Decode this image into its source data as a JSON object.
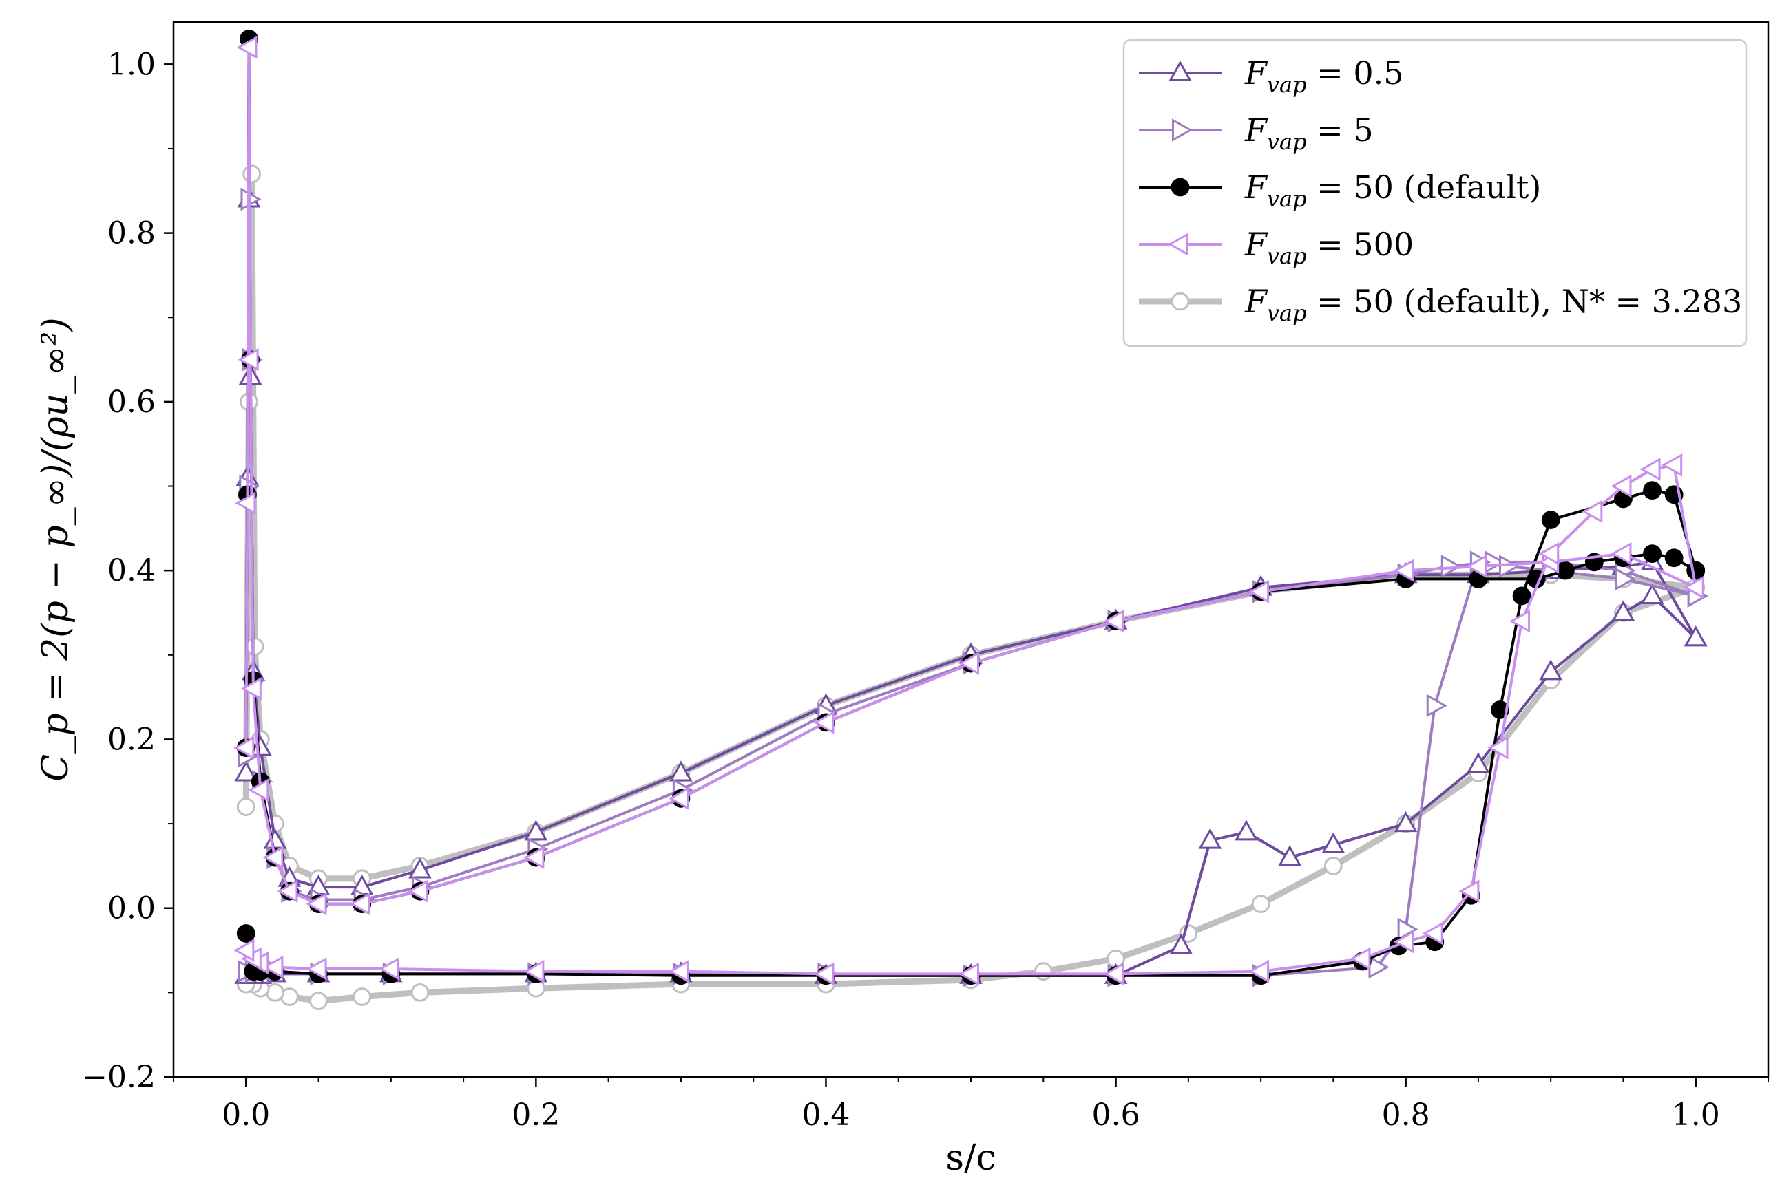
{
  "chart_data": {
    "type": "line",
    "xlabel": "s/c",
    "ylabel": "C_p = 2(p − p_∞)/(ρu_∞²)",
    "xlim": [
      -0.05,
      1.05
    ],
    "ylim": [
      -0.2,
      1.05
    ],
    "xticks": [
      0.0,
      0.2,
      0.4,
      0.6,
      0.8,
      1.0
    ],
    "xtick_labels": [
      "0.0",
      "0.2",
      "0.4",
      "0.6",
      "0.8",
      "1.0"
    ],
    "yticks": [
      -0.2,
      0.0,
      0.2,
      0.4,
      0.6,
      0.8,
      1.0
    ],
    "ytick_labels": [
      "−0.2",
      "0.0",
      "0.2",
      "0.4",
      "0.6",
      "0.8",
      "1.0"
    ],
    "grid": false,
    "legend_position": "top-right",
    "series": [
      {
        "name": "F_vap = 50 (default), N* = 3.283",
        "legend_main": "F",
        "legend_sub": "vap",
        "legend_rest": " = 50 (default), N* = 3.283",
        "color": "#bfbfbf",
        "marker": "circle",
        "filled": false,
        "line_width": 9,
        "x": [
          0.0,
          0.002,
          0.004,
          0.006,
          0.01,
          0.02,
          0.03,
          0.05,
          0.08,
          0.12,
          0.2,
          0.3,
          0.4,
          0.5,
          0.6,
          0.7,
          0.8,
          0.85,
          0.9,
          0.95,
          1.0,
          1.0,
          0.95,
          0.9,
          0.85,
          0.8,
          0.75,
          0.7,
          0.65,
          0.6,
          0.55,
          0.5,
          0.4,
          0.3,
          0.2,
          0.12,
          0.08,
          0.05,
          0.03,
          0.02,
          0.01,
          0.005,
          0.0
        ],
        "y": [
          0.12,
          0.6,
          0.87,
          0.31,
          0.2,
          0.1,
          0.05,
          0.035,
          0.035,
          0.05,
          0.09,
          0.16,
          0.24,
          0.3,
          0.34,
          0.375,
          0.395,
          0.395,
          0.395,
          0.39,
          0.38,
          0.38,
          0.35,
          0.27,
          0.16,
          0.1,
          0.05,
          0.005,
          -0.03,
          -0.06,
          -0.075,
          -0.085,
          -0.09,
          -0.09,
          -0.095,
          -0.1,
          -0.105,
          -0.11,
          -0.105,
          -0.1,
          -0.095,
          -0.09,
          -0.09
        ]
      },
      {
        "name": "F_vap = 0.5",
        "legend_main": "F",
        "legend_sub": "vap",
        "legend_rest": " = 0.5",
        "color": "#6f4ba0",
        "marker": "triangle-up",
        "filled": false,
        "line_width": 4,
        "x": [
          0.0,
          0.001,
          0.002,
          0.003,
          0.005,
          0.01,
          0.02,
          0.03,
          0.05,
          0.08,
          0.12,
          0.2,
          0.3,
          0.4,
          0.5,
          0.6,
          0.7,
          0.8,
          0.85,
          0.9,
          0.95,
          0.97,
          1.0,
          1.0,
          0.97,
          0.95,
          0.9,
          0.85,
          0.8,
          0.75,
          0.72,
          0.69,
          0.665,
          0.645,
          0.6,
          0.5,
          0.4,
          0.3,
          0.2,
          0.1,
          0.05,
          0.02,
          0.01,
          0.005,
          0.0
        ],
        "y": [
          0.16,
          0.51,
          0.84,
          0.63,
          0.28,
          0.19,
          0.08,
          0.035,
          0.025,
          0.025,
          0.045,
          0.09,
          0.16,
          0.24,
          0.3,
          0.34,
          0.38,
          0.395,
          0.395,
          0.4,
          0.405,
          0.41,
          0.32,
          0.32,
          0.37,
          0.35,
          0.28,
          0.17,
          0.1,
          0.075,
          0.06,
          0.09,
          0.08,
          -0.045,
          -0.08,
          -0.08,
          -0.08,
          -0.078,
          -0.078,
          -0.078,
          -0.078,
          -0.078,
          -0.08,
          -0.08,
          -0.08
        ]
      },
      {
        "name": "F_vap = 5",
        "legend_main": "F",
        "legend_sub": "vap",
        "legend_rest": " = 5",
        "color": "#9d7cc0",
        "marker": "triangle-right",
        "filled": false,
        "line_width": 4,
        "x": [
          0.0,
          0.001,
          0.002,
          0.003,
          0.005,
          0.01,
          0.02,
          0.03,
          0.05,
          0.08,
          0.12,
          0.2,
          0.3,
          0.4,
          0.5,
          0.6,
          0.7,
          0.8,
          0.83,
          0.86,
          0.9,
          0.95,
          1.0,
          1.0,
          0.95,
          0.9,
          0.87,
          0.85,
          0.82,
          0.8,
          0.78,
          0.7,
          0.6,
          0.5,
          0.4,
          0.3,
          0.2,
          0.1,
          0.05,
          0.02,
          0.01,
          0.005,
          0.0
        ],
        "y": [
          0.18,
          0.5,
          0.84,
          0.65,
          0.27,
          0.15,
          0.06,
          0.02,
          0.01,
          0.01,
          0.025,
          0.07,
          0.14,
          0.23,
          0.29,
          0.34,
          0.375,
          0.395,
          0.405,
          0.41,
          0.41,
          0.4,
          0.37,
          0.37,
          0.39,
          0.4,
          0.405,
          0.41,
          0.24,
          -0.025,
          -0.07,
          -0.08,
          -0.08,
          -0.08,
          -0.078,
          -0.078,
          -0.078,
          -0.078,
          -0.078,
          -0.075,
          -0.075,
          -0.075,
          -0.075
        ]
      },
      {
        "name": "F_vap = 50 (default)",
        "legend_main": "F",
        "legend_sub": "vap",
        "legend_rest": " = 50 (default)",
        "color": "#000000",
        "marker": "circle",
        "filled": true,
        "line_width": 4,
        "x": [
          0.0,
          0.001,
          0.002,
          0.003,
          0.005,
          0.01,
          0.02,
          0.03,
          0.05,
          0.08,
          0.12,
          0.2,
          0.3,
          0.4,
          0.5,
          0.6,
          0.7,
          0.8,
          0.85,
          0.89,
          0.91,
          0.93,
          0.95,
          0.97,
          0.985,
          1.0,
          1.0,
          0.985,
          0.97,
          0.95,
          0.9,
          0.88,
          0.865,
          0.845,
          0.82,
          0.795,
          0.77,
          0.7,
          0.6,
          0.5,
          0.4,
          0.3,
          0.2,
          0.1,
          0.05,
          0.02,
          0.01,
          0.005,
          0.0
        ],
        "y": [
          0.19,
          0.49,
          1.03,
          0.65,
          0.27,
          0.15,
          0.06,
          0.02,
          0.005,
          0.005,
          0.02,
          0.06,
          0.13,
          0.22,
          0.29,
          0.34,
          0.375,
          0.39,
          0.39,
          0.39,
          0.4,
          0.41,
          0.415,
          0.42,
          0.415,
          0.4,
          0.4,
          0.49,
          0.495,
          0.485,
          0.46,
          0.37,
          0.235,
          0.015,
          -0.04,
          -0.045,
          -0.063,
          -0.08,
          -0.08,
          -0.08,
          -0.08,
          -0.08,
          -0.078,
          -0.078,
          -0.078,
          -0.075,
          -0.075,
          -0.075,
          -0.03
        ]
      },
      {
        "name": "F_vap = 500",
        "legend_main": "F",
        "legend_sub": "vap",
        "legend_rest": " = 500",
        "color": "#c98ff0",
        "marker": "triangle-left",
        "filled": false,
        "line_width": 4,
        "x": [
          0.0,
          0.001,
          0.002,
          0.003,
          0.005,
          0.01,
          0.02,
          0.03,
          0.05,
          0.08,
          0.12,
          0.2,
          0.3,
          0.4,
          0.5,
          0.6,
          0.7,
          0.8,
          0.85,
          0.9,
          0.95,
          1.0,
          1.0,
          0.985,
          0.97,
          0.95,
          0.93,
          0.9,
          0.88,
          0.865,
          0.845,
          0.82,
          0.8,
          0.77,
          0.7,
          0.6,
          0.5,
          0.4,
          0.3,
          0.2,
          0.1,
          0.05,
          0.02,
          0.01,
          0.005,
          0.0
        ],
        "y": [
          0.19,
          0.48,
          1.02,
          0.65,
          0.26,
          0.14,
          0.06,
          0.02,
          0.005,
          0.005,
          0.02,
          0.06,
          0.13,
          0.22,
          0.29,
          0.34,
          0.375,
          0.4,
          0.405,
          0.41,
          0.42,
          0.38,
          0.38,
          0.525,
          0.52,
          0.5,
          0.47,
          0.42,
          0.34,
          0.19,
          0.02,
          -0.03,
          -0.04,
          -0.06,
          -0.075,
          -0.078,
          -0.078,
          -0.078,
          -0.075,
          -0.075,
          -0.072,
          -0.072,
          -0.07,
          -0.065,
          -0.06,
          -0.05
        ]
      }
    ],
    "legend_order": [
      1,
      2,
      3,
      4,
      0
    ]
  }
}
